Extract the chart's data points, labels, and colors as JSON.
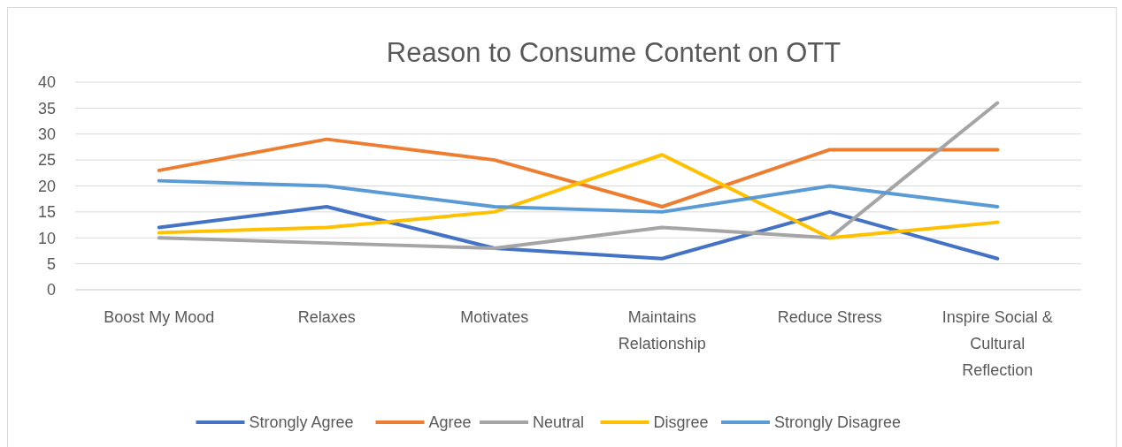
{
  "chart_data": {
    "type": "line",
    "title": "Reason to Consume Content on OTT",
    "categories": [
      "Boost My Mood",
      "Relaxes",
      "Motivates",
      "Maintains Relationship",
      "Reduce Stress",
      "Inspire Social & Cultural Reflection"
    ],
    "series": [
      {
        "name": "Strongly Agree",
        "color": "#4472c4",
        "values": [
          12,
          16,
          8,
          6,
          15,
          6
        ]
      },
      {
        "name": "Agree",
        "color": "#ed7d31",
        "values": [
          23,
          29,
          25,
          16,
          27,
          27
        ]
      },
      {
        "name": "Neutral",
        "color": "#a5a5a5",
        "values": [
          10,
          9,
          8,
          12,
          10,
          36
        ]
      },
      {
        "name": "Disgree",
        "color": "#ffc000",
        "values": [
          11,
          12,
          15,
          26,
          10,
          13
        ]
      },
      {
        "name": "Strongly Disagree",
        "color": "#5b9bd5",
        "values": [
          21,
          20,
          16,
          15,
          20,
          16
        ]
      }
    ],
    "ylim": [
      0,
      40
    ],
    "yticks": [
      0,
      5,
      10,
      15,
      20,
      25,
      30,
      35,
      40
    ],
    "grid": "y",
    "legend": "bottom",
    "marker": "none",
    "line_style": "solid"
  }
}
